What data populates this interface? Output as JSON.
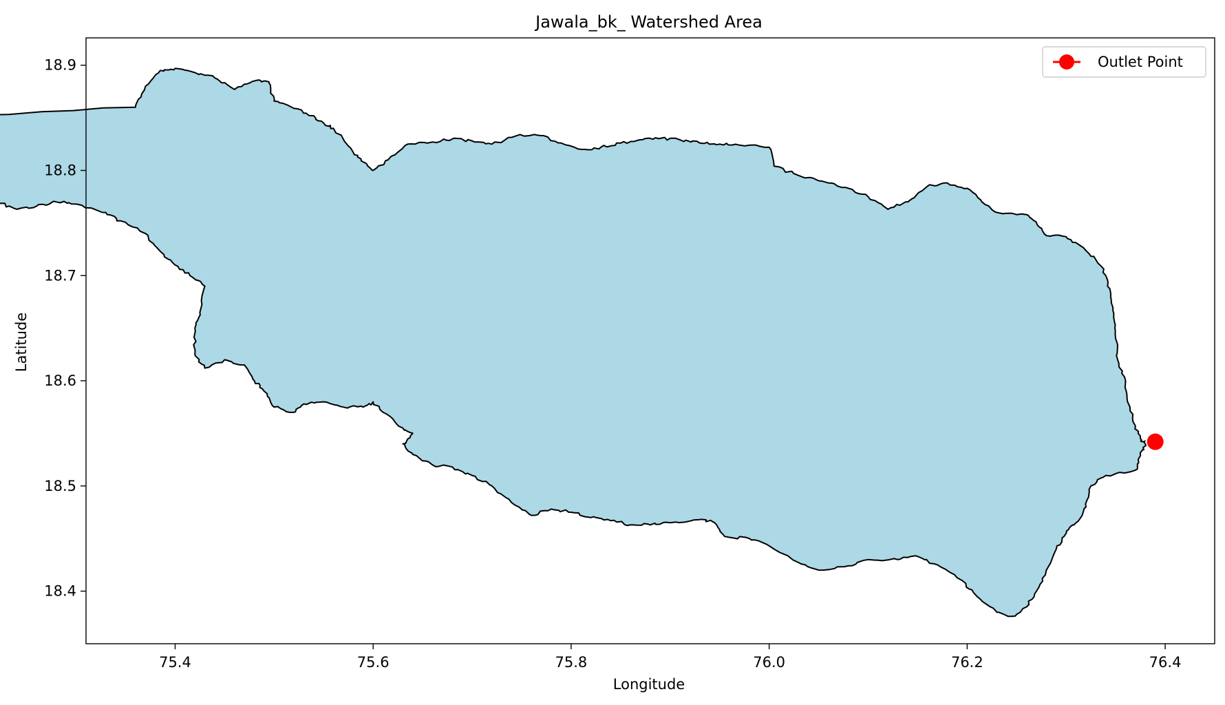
{
  "chart_data": {
    "type": "map",
    "title": "Jawala_bk_ Watershed Area",
    "xlabel": "Longitude",
    "ylabel": "Latitude",
    "xlim": [
      75.31,
      76.45
    ],
    "ylim": [
      18.35,
      18.926
    ],
    "xticks": [
      75.4,
      75.6,
      75.8,
      76.0,
      76.2,
      76.4
    ],
    "yticks": [
      18.4,
      18.5,
      18.6,
      18.7,
      18.8,
      18.9
    ],
    "tick_decimals": 1,
    "grid": false,
    "legend": {
      "position": "upper right",
      "entries": [
        {
          "label": "Outlet Point",
          "color": "#ff0000",
          "marker": "circle-line"
        }
      ]
    },
    "watershed": {
      "fill_color": "#add8e6",
      "edge_color": "#000000",
      "boundary": [
        [
          75.36,
          18.86
        ],
        [
          75.37,
          18.88
        ],
        [
          75.385,
          18.895
        ],
        [
          75.4,
          18.897
        ],
        [
          75.42,
          18.893
        ],
        [
          75.44,
          18.888
        ],
        [
          75.46,
          18.877
        ],
        [
          75.47,
          18.882
        ],
        [
          75.485,
          18.886
        ],
        [
          75.495,
          18.883
        ],
        [
          75.5,
          18.866
        ],
        [
          75.52,
          18.859
        ],
        [
          75.54,
          18.852
        ],
        [
          75.55,
          18.845
        ],
        [
          75.56,
          18.84
        ],
        [
          75.58,
          18.817
        ],
        [
          75.59,
          18.808
        ],
        [
          75.6,
          18.8
        ],
        [
          75.615,
          18.81
        ],
        [
          75.635,
          18.825
        ],
        [
          75.66,
          18.827
        ],
        [
          75.68,
          18.83
        ],
        [
          75.7,
          18.828
        ],
        [
          75.72,
          18.825
        ],
        [
          75.745,
          18.833
        ],
        [
          75.77,
          18.833
        ],
        [
          75.79,
          18.826
        ],
        [
          75.81,
          18.82
        ],
        [
          75.83,
          18.822
        ],
        [
          75.85,
          18.826
        ],
        [
          75.865,
          18.828
        ],
        [
          75.885,
          18.831
        ],
        [
          75.91,
          18.829
        ],
        [
          75.93,
          18.826
        ],
        [
          75.95,
          18.825
        ],
        [
          75.97,
          18.824
        ],
        [
          76.0,
          18.822
        ],
        [
          76.005,
          18.804
        ],
        [
          76.03,
          18.795
        ],
        [
          76.06,
          18.788
        ],
        [
          76.08,
          18.783
        ],
        [
          76.1,
          18.775
        ],
        [
          76.12,
          18.763
        ],
        [
          76.14,
          18.77
        ],
        [
          76.16,
          18.785
        ],
        [
          76.18,
          18.788
        ],
        [
          76.2,
          18.783
        ],
        [
          76.215,
          18.77
        ],
        [
          76.23,
          18.76
        ],
        [
          76.26,
          18.758
        ],
        [
          76.27,
          18.75
        ],
        [
          76.28,
          18.738
        ],
        [
          76.3,
          18.737
        ],
        [
          76.315,
          18.728
        ],
        [
          76.33,
          18.715
        ],
        [
          76.34,
          18.7
        ],
        [
          76.345,
          18.68
        ],
        [
          76.348,
          18.66
        ],
        [
          76.35,
          18.64
        ],
        [
          76.352,
          18.62
        ],
        [
          76.36,
          18.6
        ],
        [
          76.362,
          18.58
        ],
        [
          76.37,
          18.557
        ],
        [
          76.375,
          18.545
        ],
        [
          76.38,
          18.54
        ],
        [
          76.375,
          18.53
        ],
        [
          76.37,
          18.515
        ],
        [
          76.34,
          18.51
        ],
        [
          76.325,
          18.5
        ],
        [
          76.32,
          18.48
        ],
        [
          76.31,
          18.465
        ],
        [
          76.3,
          18.455
        ],
        [
          76.29,
          18.44
        ],
        [
          76.28,
          18.42
        ],
        [
          76.27,
          18.4
        ],
        [
          76.26,
          18.385
        ],
        [
          76.245,
          18.376
        ],
        [
          76.23,
          18.38
        ],
        [
          76.21,
          18.395
        ],
        [
          76.195,
          18.41
        ],
        [
          76.17,
          18.425
        ],
        [
          76.15,
          18.433
        ],
        [
          76.13,
          18.43
        ],
        [
          76.1,
          18.43
        ],
        [
          76.08,
          18.424
        ],
        [
          76.05,
          18.42
        ],
        [
          76.03,
          18.427
        ],
        [
          76.0,
          18.443
        ],
        [
          75.98,
          18.45
        ],
        [
          75.955,
          18.452
        ],
        [
          75.945,
          18.465
        ],
        [
          75.93,
          18.468
        ],
        [
          75.9,
          18.465
        ],
        [
          75.88,
          18.463
        ],
        [
          75.86,
          18.463
        ],
        [
          75.84,
          18.467
        ],
        [
          75.82,
          18.47
        ],
        [
          75.8,
          18.475
        ],
        [
          75.78,
          18.478
        ],
        [
          75.76,
          18.472
        ],
        [
          75.74,
          18.484
        ],
        [
          75.72,
          18.5
        ],
        [
          75.7,
          18.51
        ],
        [
          75.68,
          18.518
        ],
        [
          75.66,
          18.52
        ],
        [
          75.64,
          18.53
        ],
        [
          75.63,
          18.54
        ],
        [
          75.64,
          18.55
        ],
        [
          75.63,
          18.555
        ],
        [
          75.61,
          18.57
        ],
        [
          75.6,
          18.58
        ],
        [
          75.59,
          18.575
        ],
        [
          75.57,
          18.575
        ],
        [
          75.55,
          18.58
        ],
        [
          75.53,
          18.578
        ],
        [
          75.52,
          18.57
        ],
        [
          75.5,
          18.575
        ],
        [
          75.49,
          18.59
        ],
        [
          75.48,
          18.6
        ],
        [
          75.47,
          18.615
        ],
        [
          75.45,
          18.62
        ],
        [
          75.43,
          18.612
        ],
        [
          75.42,
          18.625
        ],
        [
          75.42,
          18.65
        ],
        [
          75.425,
          18.665
        ],
        [
          75.43,
          18.69
        ],
        [
          75.415,
          18.7
        ],
        [
          75.4,
          18.71
        ],
        [
          75.385,
          18.723
        ],
        [
          75.37,
          18.74
        ],
        [
          75.345,
          18.752
        ],
        [
          75.33,
          18.76
        ],
        [
          75.3,
          18.768
        ],
        [
          75.28,
          18.77
        ],
        [
          75.26,
          18.766
        ],
        [
          75.24,
          18.763
        ],
        [
          75.22,
          18.77
        ],
        [
          75.2,
          18.776
        ],
        [
          75.18,
          18.785
        ],
        [
          75.19,
          18.8
        ],
        [
          75.195,
          18.82
        ],
        [
          75.205,
          18.83
        ],
        [
          75.19,
          18.84
        ],
        [
          75.17,
          18.85
        ]
      ]
    },
    "outlet_point": {
      "x": 76.39,
      "y": 18.542,
      "color": "#ff0000"
    }
  }
}
